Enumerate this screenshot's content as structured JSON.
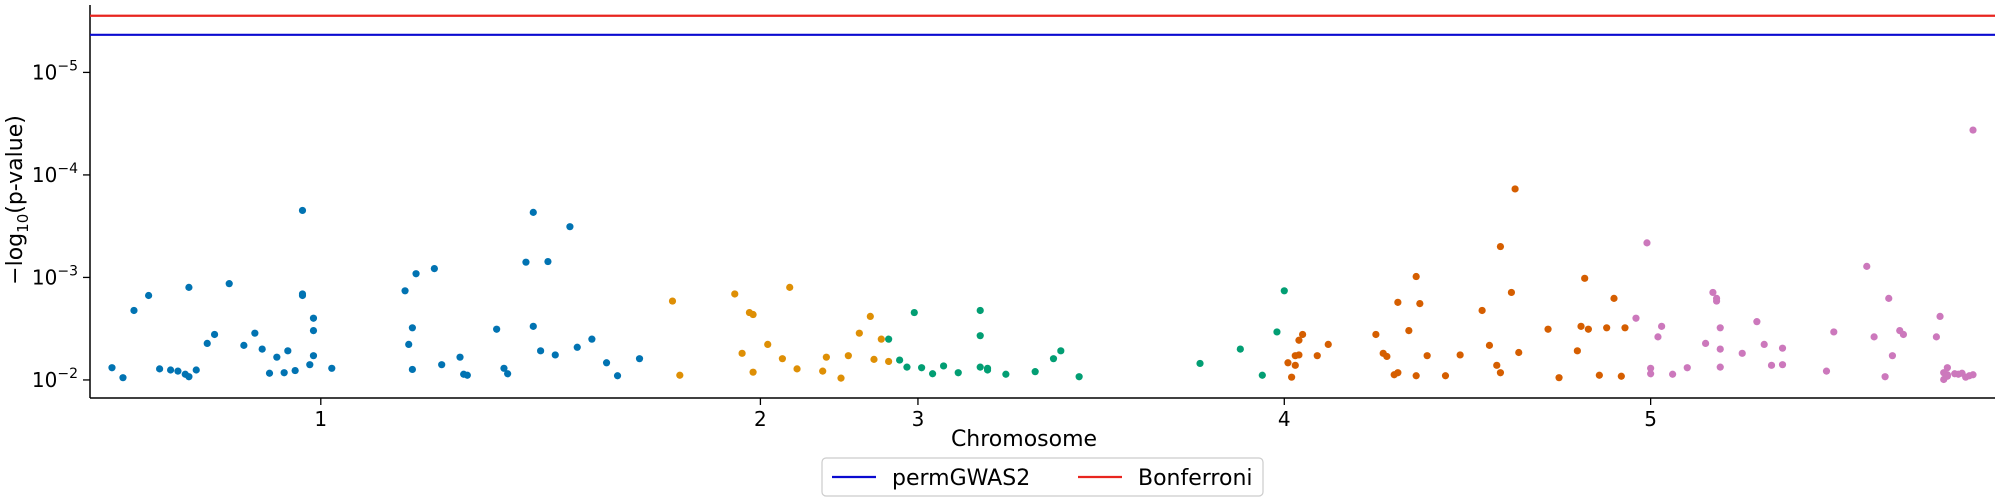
{
  "chart_data": {
    "type": "scatter",
    "title": "",
    "xlabel": "Chromosome",
    "ylabel_prefix": "−log",
    "ylabel_sub": "10",
    "ylabel_suffix": "(p-value)",
    "y_scale": "log-inverted",
    "ylim": [
      0.015,
      2.2e-06
    ],
    "xlim": [
      0.37,
      5.57
    ],
    "x_ticks": [
      1,
      2,
      3,
      4,
      5
    ],
    "x_tick_labels": [
      "1",
      "2",
      "3",
      "4",
      "5"
    ],
    "x_tick_positions": [
      1,
      2.2,
      2.63,
      3.63,
      4.63
    ],
    "y_ticks": [
      {
        "value": 0.01,
        "label": "10",
        "exp": "−2"
      },
      {
        "value": 0.001,
        "label": "10",
        "exp": "−3"
      },
      {
        "value": 0.0001,
        "label": "10",
        "exp": "−4"
      },
      {
        "value": 1e-05,
        "label": "10",
        "exp": "−5"
      }
    ],
    "grid": false,
    "legend_position": "bottom-center",
    "thresholds": [
      {
        "name": "permGWAS2",
        "value": 4.3e-06,
        "color": "#0a0ad0"
      },
      {
        "name": "Bonferroni",
        "value": 2.8e-06,
        "color": "#e8251f"
      }
    ],
    "series": [
      {
        "color": "#0173b2",
        "points": [
          [
            0.43,
            0.0076
          ],
          [
            0.46,
            0.0095
          ],
          [
            0.49,
            0.0021
          ],
          [
            0.53,
            0.0015
          ],
          [
            0.56,
            0.0078
          ],
          [
            0.59,
            0.008
          ],
          [
            0.61,
            0.0082
          ],
          [
            0.63,
            0.0088
          ],
          [
            0.64,
            0.0093
          ],
          [
            0.66,
            0.008
          ],
          [
            0.69,
            0.0044
          ],
          [
            0.71,
            0.0036
          ],
          [
            0.64,
            0.00125
          ],
          [
            0.75,
            0.00115
          ],
          [
            0.79,
            0.0046
          ],
          [
            0.82,
            0.0035
          ],
          [
            0.84,
            0.005
          ],
          [
            0.86,
            0.0086
          ],
          [
            0.88,
            0.006
          ],
          [
            0.9,
            0.0085
          ],
          [
            0.91,
            0.0052
          ],
          [
            0.93,
            0.0081
          ],
          [
            0.95,
            0.00145
          ],
          [
            0.95,
            0.0015
          ],
          [
            0.95,
            0.000222
          ],
          [
            0.97,
            0.0071
          ],
          [
            0.98,
            0.0058
          ],
          [
            0.98,
            0.0033
          ],
          [
            0.98,
            0.0025
          ],
          [
            1.03,
            0.0077
          ],
          [
            1.23,
            0.00135
          ],
          [
            1.24,
            0.0045
          ],
          [
            1.25,
            0.0079
          ],
          [
            1.25,
            0.0031
          ],
          [
            1.26,
            0.00092
          ],
          [
            1.31,
            0.00082
          ],
          [
            1.33,
            0.0071
          ],
          [
            1.38,
            0.006
          ],
          [
            1.39,
            0.0088
          ],
          [
            1.4,
            0.009
          ],
          [
            1.48,
            0.0032
          ],
          [
            1.5,
            0.0077
          ],
          [
            1.51,
            0.0087
          ],
          [
            1.56,
            0.00071
          ],
          [
            1.58,
            0.003
          ],
          [
            1.58,
            0.000232
          ],
          [
            1.6,
            0.0052
          ],
          [
            1.62,
            0.0007
          ],
          [
            1.64,
            0.0057
          ],
          [
            1.68,
            0.00032
          ],
          [
            1.7,
            0.0048
          ],
          [
            1.74,
            0.004
          ],
          [
            1.78,
            0.0068
          ],
          [
            1.81,
            0.0091
          ],
          [
            1.87,
            0.0062
          ]
        ]
      },
      {
        "color": "#de8f05",
        "points": [
          [
            1.96,
            0.0017
          ],
          [
            1.98,
            0.009
          ],
          [
            2.13,
            0.00145
          ],
          [
            2.15,
            0.0055
          ],
          [
            2.17,
            0.0022
          ],
          [
            2.18,
            0.0023
          ],
          [
            2.18,
            0.0084
          ],
          [
            2.22,
            0.0045
          ],
          [
            2.26,
            0.0062
          ],
          [
            2.28,
            0.00125
          ],
          [
            2.3,
            0.0078
          ],
          [
            2.37,
            0.0082
          ],
          [
            2.38,
            0.006
          ],
          [
            2.42,
            0.0096
          ],
          [
            2.44,
            0.0058
          ],
          [
            2.47,
            0.0035
          ],
          [
            2.5,
            0.0024
          ],
          [
            2.51,
            0.0063
          ],
          [
            2.53,
            0.004
          ],
          [
            2.55,
            0.0066
          ]
        ]
      },
      {
        "color": "#029e73",
        "points": [
          [
            2.55,
            0.004
          ],
          [
            2.62,
            0.0022
          ],
          [
            2.58,
            0.0064
          ],
          [
            2.6,
            0.0075
          ],
          [
            2.64,
            0.0076
          ],
          [
            2.67,
            0.0087
          ],
          [
            2.7,
            0.0073
          ],
          [
            2.74,
            0.0085
          ],
          [
            2.8,
            0.0075
          ],
          [
            2.82,
            0.008
          ],
          [
            2.82,
            0.0077
          ],
          [
            2.8,
            0.0037
          ],
          [
            2.8,
            0.0021
          ],
          [
            2.87,
            0.0088
          ],
          [
            2.95,
            0.0083
          ],
          [
            3.0,
            0.0062
          ],
          [
            3.02,
            0.0052
          ],
          [
            3.07,
            0.0093
          ],
          [
            3.4,
            0.0069
          ],
          [
            3.51,
            0.005
          ],
          [
            3.57,
            0.009
          ],
          [
            3.61,
            0.0034
          ],
          [
            3.63,
            0.00135
          ]
        ]
      },
      {
        "color": "#d55e00",
        "points": [
          [
            3.64,
            0.0068
          ],
          [
            3.65,
            0.0094
          ],
          [
            3.66,
            0.0072
          ],
          [
            3.66,
            0.0058
          ],
          [
            3.67,
            0.0041
          ],
          [
            3.67,
            0.0057
          ],
          [
            3.68,
            0.0036
          ],
          [
            3.72,
            0.0058
          ],
          [
            3.75,
            0.0045
          ],
          [
            3.88,
            0.0036
          ],
          [
            3.9,
            0.0055
          ],
          [
            3.91,
            0.0059
          ],
          [
            3.93,
            0.0089
          ],
          [
            3.94,
            0.00175
          ],
          [
            3.94,
            0.0085
          ],
          [
            3.97,
            0.0033
          ],
          [
            3.99,
            0.0091
          ],
          [
            3.99,
            0.00098
          ],
          [
            4.0,
            0.0018
          ],
          [
            4.02,
            0.0058
          ],
          [
            4.07,
            0.0091
          ],
          [
            4.11,
            0.0057
          ],
          [
            4.17,
            0.0021
          ],
          [
            4.19,
            0.0046
          ],
          [
            4.21,
            0.0072
          ],
          [
            4.22,
            0.0085
          ],
          [
            4.22,
            0.0005
          ],
          [
            4.25,
            0.0014
          ],
          [
            4.26,
            0.000137
          ],
          [
            4.27,
            0.0054
          ],
          [
            4.35,
            0.0032
          ],
          [
            4.38,
            0.0095
          ],
          [
            4.43,
            0.0052
          ],
          [
            4.44,
            0.003
          ],
          [
            4.45,
            0.00102
          ],
          [
            4.46,
            0.0032
          ],
          [
            4.49,
            0.009
          ],
          [
            4.51,
            0.0031
          ],
          [
            4.53,
            0.0016
          ],
          [
            4.55,
            0.0092
          ],
          [
            4.56,
            0.0031
          ]
        ]
      },
      {
        "color": "#cc78bc",
        "points": [
          [
            4.59,
            0.0025
          ],
          [
            4.62,
            0.00046
          ],
          [
            4.65,
            0.0038
          ],
          [
            4.63,
            0.0087
          ],
          [
            4.66,
            0.003
          ],
          [
            4.69,
            0.0088
          ],
          [
            4.73,
            0.0076
          ],
          [
            4.78,
            0.0044
          ],
          [
            4.8,
            0.0014
          ],
          [
            4.81,
            0.0016
          ],
          [
            4.82,
            0.0031
          ],
          [
            4.82,
            0.005
          ],
          [
            4.81,
            0.0017
          ],
          [
            4.82,
            0.0075
          ],
          [
            4.88,
            0.0055
          ],
          [
            4.92,
            0.0027
          ],
          [
            4.94,
            0.0045
          ],
          [
            4.96,
            0.0072
          ],
          [
            4.99,
            0.0071
          ],
          [
            4.99,
            0.0049
          ],
          [
            4.63,
            0.0077
          ],
          [
            5.11,
            0.0082
          ],
          [
            5.13,
            0.0034
          ],
          [
            5.22,
            0.00078
          ],
          [
            5.24,
            0.0038
          ],
          [
            5.27,
            0.0093
          ],
          [
            5.28,
            0.0016
          ],
          [
            5.29,
            0.0058
          ],
          [
            5.31,
            0.0033
          ],
          [
            5.32,
            0.0036
          ],
          [
            5.41,
            0.0038
          ],
          [
            5.42,
            0.0024
          ],
          [
            5.43,
            0.0085
          ],
          [
            5.43,
            0.0099
          ],
          [
            5.44,
            0.0076
          ],
          [
            5.44,
            0.0089
          ],
          [
            5.44,
            0.0092
          ],
          [
            5.46,
            0.0087
          ],
          [
            5.47,
            0.0088
          ],
          [
            5.48,
            0.0086
          ],
          [
            5.49,
            0.0094
          ],
          [
            5.5,
            0.0091
          ],
          [
            5.51,
            0.0089
          ],
          [
            5.51,
            3.65e-05
          ]
        ]
      }
    ]
  }
}
